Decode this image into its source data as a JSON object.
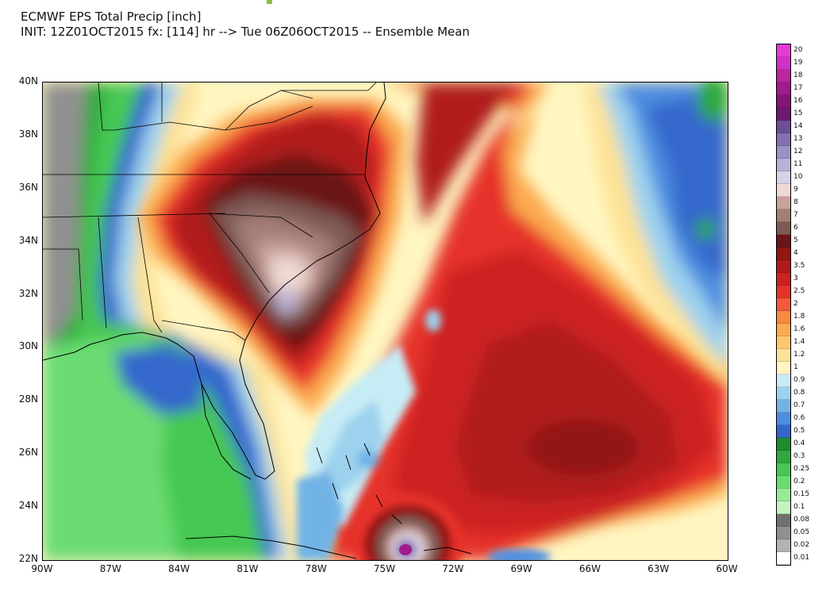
{
  "title": {
    "line1": "ECMWF EPS Total Precip [inch]",
    "line2": "INIT: 12Z01OCT2015 fx: [114] hr --> Tue 06Z06OCT2015 -- Ensemble Mean"
  },
  "axes": {
    "lat_labels": [
      "40N",
      "38N",
      "36N",
      "34N",
      "32N",
      "30N",
      "28N",
      "26N",
      "24N",
      "22N"
    ],
    "lon_labels": [
      "90W",
      "87W",
      "84W",
      "81W",
      "78W",
      "75W",
      "72W",
      "69W",
      "66W",
      "63W",
      "60W"
    ],
    "lat_range": [
      22,
      40
    ],
    "lon_range": [
      -90,
      -60
    ]
  },
  "legend": {
    "entries": [
      {
        "label": "20",
        "color": "#e53ad6"
      },
      {
        "label": "19",
        "color": "#d12fc6"
      },
      {
        "label": "18",
        "color": "#b9269f"
      },
      {
        "label": "17",
        "color": "#a01c8c"
      },
      {
        "label": "16",
        "color": "#861476"
      },
      {
        "label": "15",
        "color": "#6d1a72"
      },
      {
        "label": "14",
        "color": "#6b4f99"
      },
      {
        "label": "13",
        "color": "#8470b0"
      },
      {
        "label": "12",
        "color": "#9d90c4"
      },
      {
        "label": "11",
        "color": "#b8b2d6"
      },
      {
        "label": "10",
        "color": "#d7d2e6"
      },
      {
        "label": "9",
        "color": "#efd9d3"
      },
      {
        "label": "8",
        "color": "#c9a29b"
      },
      {
        "label": "7",
        "color": "#a47d77"
      },
      {
        "label": "6",
        "color": "#7e5a55"
      },
      {
        "label": "5",
        "color": "#6b1616"
      },
      {
        "label": "4",
        "color": "#921616"
      },
      {
        "label": "3.5",
        "color": "#b01a1d"
      },
      {
        "label": "3",
        "color": "#cc2222"
      },
      {
        "label": "2.5",
        "color": "#e6332a"
      },
      {
        "label": "2",
        "color": "#f25a3b"
      },
      {
        "label": "1.8",
        "color": "#f78a3f"
      },
      {
        "label": "1.6",
        "color": "#fbaa50"
      },
      {
        "label": "1.4",
        "color": "#fdc871"
      },
      {
        "label": "1.2",
        "color": "#fde295"
      },
      {
        "label": "1",
        "color": "#fff6c1"
      },
      {
        "label": "0.9",
        "color": "#c6ecf5"
      },
      {
        "label": "0.8",
        "color": "#9dd2ee"
      },
      {
        "label": "0.7",
        "color": "#72b3e6"
      },
      {
        "label": "0.6",
        "color": "#4d8ee0"
      },
      {
        "label": "0.5",
        "color": "#3467cc"
      },
      {
        "label": "0.4",
        "color": "#1f8b2e"
      },
      {
        "label": "0.3",
        "color": "#2fa83e"
      },
      {
        "label": "0.25",
        "color": "#47c753"
      },
      {
        "label": "0.2",
        "color": "#6bdc72"
      },
      {
        "label": "0.15",
        "color": "#96ea98"
      },
      {
        "label": "0.1",
        "color": "#c3f3c1"
      },
      {
        "label": "0.08",
        "color": "#707070"
      },
      {
        "label": "0.05",
        "color": "#909090"
      },
      {
        "label": "0.02",
        "color": "#b3b3b3"
      },
      {
        "label": "0.01",
        "color": "#ffffff"
      }
    ]
  },
  "colors": {
    "frame": "#000000",
    "marker": "#8fbe45"
  }
}
